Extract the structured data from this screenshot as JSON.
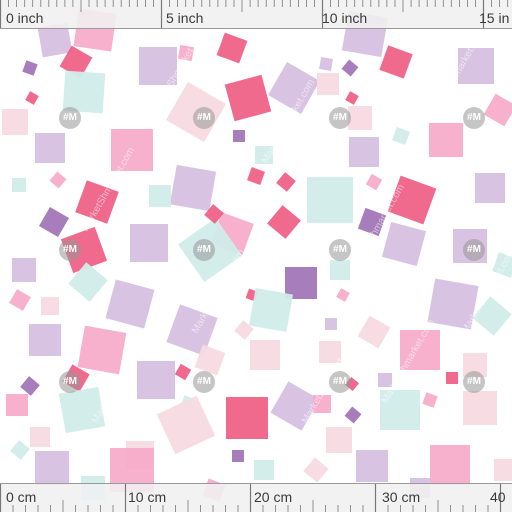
{
  "pattern": {
    "name": "pastel scattered squares fabric",
    "background": "#ffffff",
    "palette": {
      "hot_pink": "#ee5a82",
      "pink": "#f6a8c6",
      "light_pink": "#f7dbe2",
      "lavender": "#d5bde0",
      "purple": "#9f6fb4",
      "mint": "#d1ecea"
    }
  },
  "rulers": {
    "top": {
      "labels": [
        "0 inch",
        "5 inch",
        "10 inch",
        "15 in"
      ]
    },
    "bottom": {
      "labels": [
        "0 cm",
        "10 cm",
        "20 cm",
        "30 cm",
        "40"
      ]
    }
  },
  "watermark": {
    "text": "MarketShmarket.com",
    "badge": "#M"
  }
}
